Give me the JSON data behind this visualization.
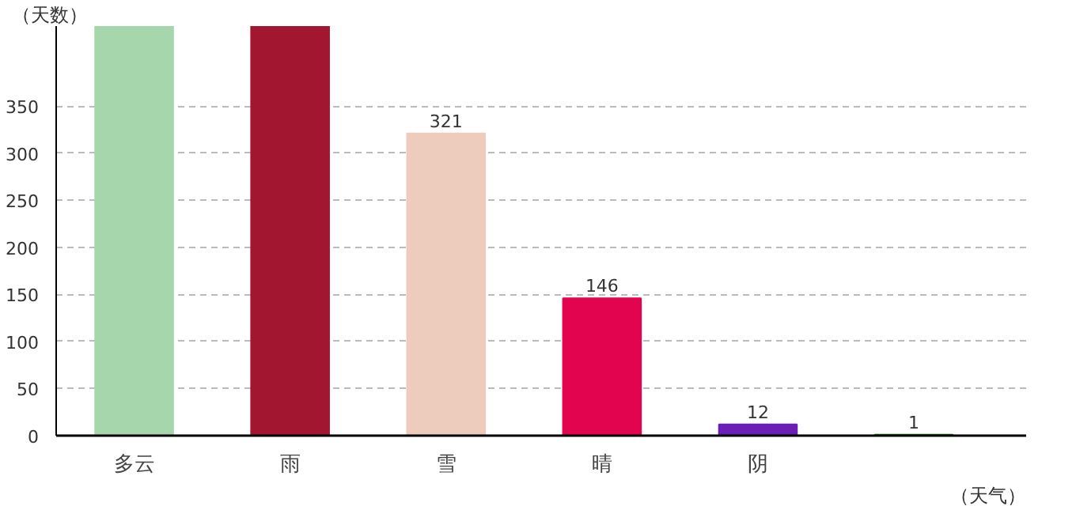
{
  "chart_data": {
    "type": "bar",
    "ylabel": "（天数）",
    "xlabel": "（天气）",
    "categories": [
      "多云",
      "雨",
      "雪",
      "晴",
      "阴",
      null
    ],
    "values": [
      435,
      435,
      321,
      146,
      12,
      1
    ],
    "colors": [
      "#a6d6ab",
      "#a3162f",
      "#edcbbd",
      "#e2044f",
      "#6a1eb6",
      "#1f7a1f"
    ],
    "value_labels": [
      null,
      null,
      "321",
      "146",
      "12",
      "1"
    ],
    "ylim": [
      0,
      435
    ],
    "yticks": [
      0,
      50,
      100,
      150,
      200,
      250,
      300,
      350
    ],
    "grid": "y"
  }
}
